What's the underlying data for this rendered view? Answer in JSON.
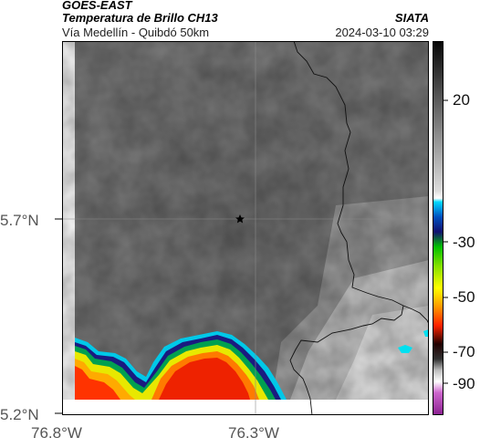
{
  "header": {
    "satellite": "GOES-EAST",
    "product": "Temperatura de Brillo CH13",
    "region": "Vía Medellín - Quibdó 50km",
    "agency": "SIATA",
    "datetime": "2024-03-10 03:29"
  },
  "map": {
    "lat_ticks": [
      "5.7°N",
      "5.2°N"
    ],
    "lon_ticks": [
      "76.8°W",
      "76.3°W"
    ],
    "marker": "star-marker"
  },
  "colorbar": {
    "ticks": [
      "20",
      "-30",
      "-50",
      "-70",
      "-90"
    ]
  },
  "icons": {
    "marker": "star-icon"
  }
}
